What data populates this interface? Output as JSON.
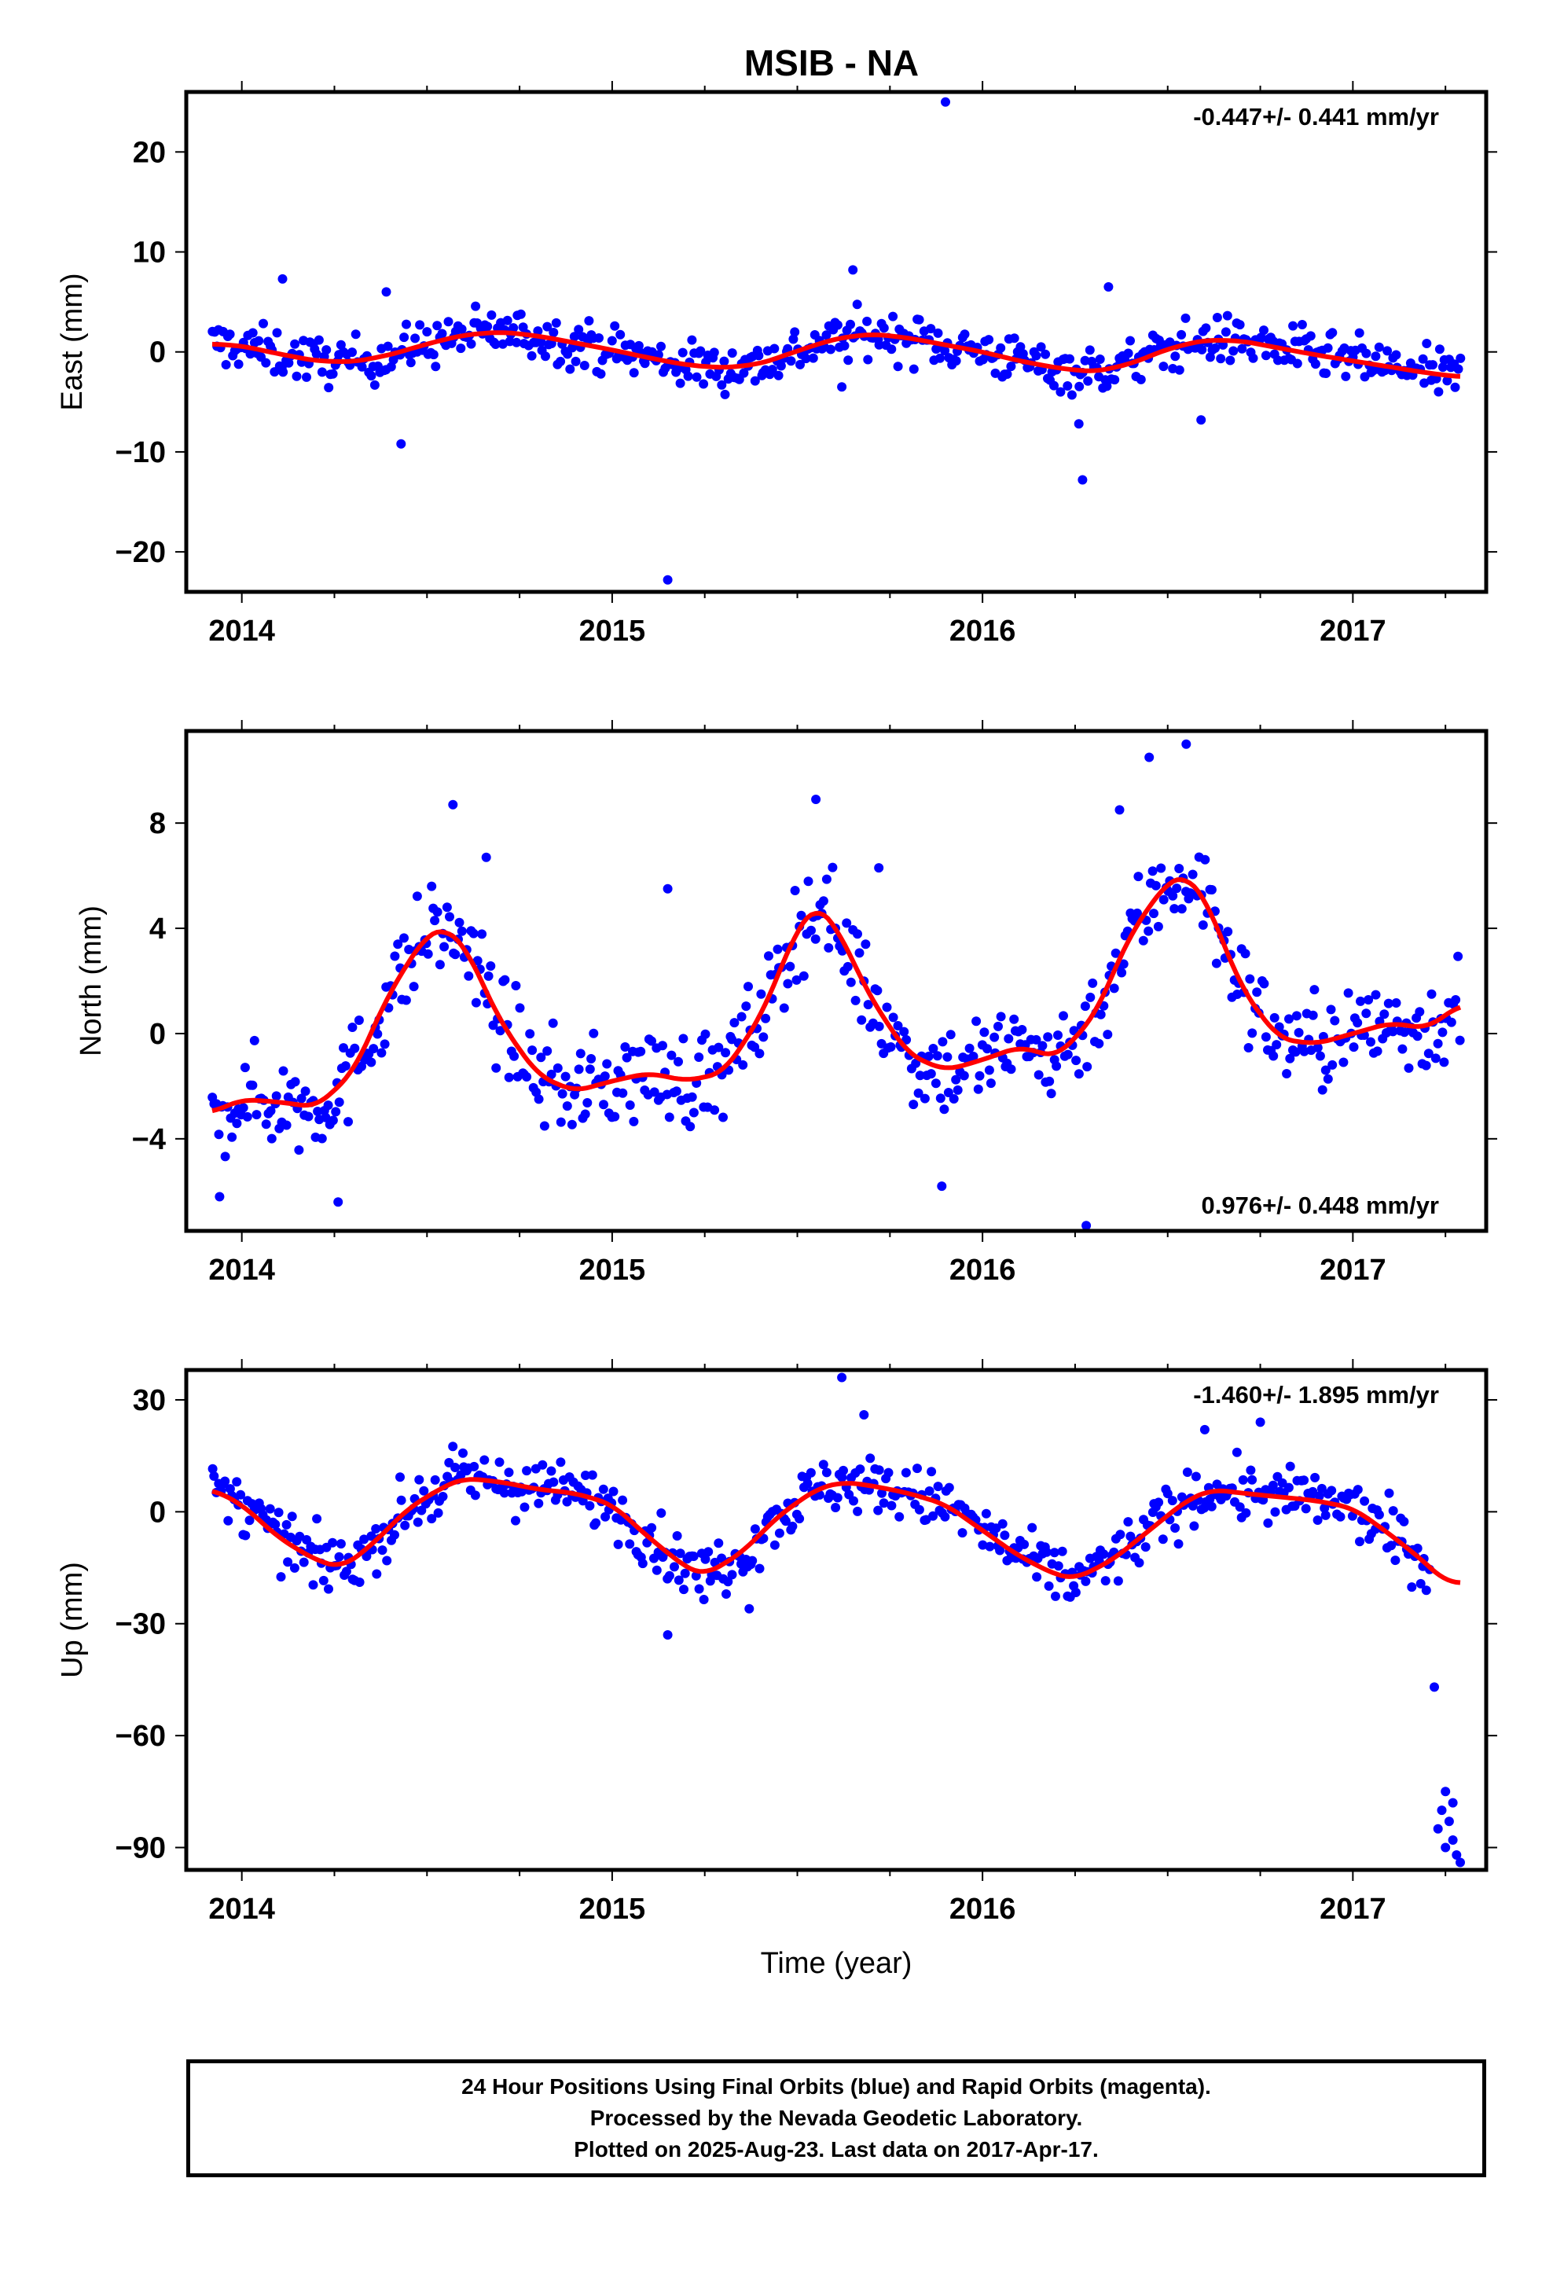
{
  "title": "MSIB - NA",
  "colors": {
    "points": "#0000ff",
    "fit": "#ff0000",
    "frame": "#000000"
  },
  "xlabel": "Time (year)",
  "footer": [
    "24 Hour Positions Using Final Orbits (blue) and Rapid Orbits (magenta).",
    "Processed by the Nevada Geodetic Laboratory.",
    "Plotted on 2025-Aug-23. Last data on 2017-Apr-17."
  ],
  "chart_data": [
    {
      "type": "scatter",
      "ylabel": "East (mm)",
      "rate": "-0.447+/- 0.441 mm/yr",
      "rate_position": "top-right",
      "xlim": [
        2013.85,
        2017.36
      ],
      "ylim": [
        -24,
        26
      ],
      "xticks": [
        2014,
        2015,
        2016,
        2017
      ],
      "yticks": [
        20,
        10,
        0,
        -10,
        -20
      ],
      "ytick_labels": [
        "20",
        "10",
        "0",
        "−10",
        "−20"
      ],
      "fit": {
        "x": [
          2013.92,
          2014.0,
          2014.1,
          2014.2,
          2014.3,
          2014.4,
          2014.5,
          2014.6,
          2014.7,
          2014.8,
          2014.9,
          2015.0,
          2015.1,
          2015.2,
          2015.3,
          2015.4,
          2015.5,
          2015.6,
          2015.7,
          2015.8,
          2015.9,
          2016.0,
          2016.1,
          2016.2,
          2016.3,
          2016.4,
          2016.5,
          2016.6,
          2016.7,
          2016.8,
          2016.9,
          2017.0,
          2017.1,
          2017.2,
          2017.29
        ],
        "y": [
          0.8,
          0.6,
          -0.2,
          -0.9,
          -1.0,
          -0.3,
          0.8,
          1.7,
          2.0,
          1.6,
          0.9,
          0.2,
          -0.6,
          -1.3,
          -1.6,
          -1.2,
          0.1,
          1.3,
          1.8,
          1.4,
          0.7,
          0.0,
          -0.9,
          -1.6,
          -2.0,
          -1.2,
          0.3,
          1.2,
          1.1,
          0.4,
          -0.3,
          -0.9,
          -1.5,
          -2.1,
          -2.5
        ]
      },
      "outliers": [
        [
          2015.9,
          25.0
        ],
        [
          2015.15,
          -22.8
        ],
        [
          2016.27,
          -12.8
        ],
        [
          2014.43,
          -9.2
        ],
        [
          2016.34,
          6.5
        ],
        [
          2016.59,
          -6.8
        ],
        [
          2014.11,
          7.3
        ],
        [
          2014.39,
          6.0
        ],
        [
          2015.65,
          8.2
        ],
        [
          2016.26,
          -7.2
        ],
        [
          2015.62,
          -3.5
        ]
      ],
      "scatter": {
        "spread": 1.7,
        "n": 560
      }
    },
    {
      "type": "scatter",
      "ylabel": "North (mm)",
      "rate": "0.976+/- 0.448 mm/yr",
      "rate_position": "bottom-right",
      "xlim": [
        2013.85,
        2017.36
      ],
      "ylim": [
        -7.5,
        11.5
      ],
      "xticks": [
        2014,
        2015,
        2016,
        2017
      ],
      "yticks": [
        8,
        4,
        0,
        -4
      ],
      "ytick_labels": [
        "8",
        "4",
        "0",
        "−4"
      ],
      "fit": {
        "x": [
          2013.92,
          2014.0,
          2014.1,
          2014.2,
          2014.3,
          2014.4,
          2014.5,
          2014.55,
          2014.6,
          2014.7,
          2014.8,
          2014.9,
          2015.0,
          2015.1,
          2015.2,
          2015.3,
          2015.4,
          2015.5,
          2015.55,
          2015.6,
          2015.7,
          2015.8,
          2015.9,
          2016.0,
          2016.1,
          2016.2,
          2016.3,
          2016.4,
          2016.5,
          2016.55,
          2016.6,
          2016.7,
          2016.8,
          2016.9,
          2017.0,
          2017.1,
          2017.2,
          2017.29
        ],
        "y": [
          -3.0,
          -2.5,
          -2.6,
          -2.8,
          -1.5,
          1.6,
          3.8,
          4.0,
          3.4,
          0.4,
          -1.6,
          -2.2,
          -1.8,
          -1.5,
          -1.8,
          -1.5,
          0.6,
          4.0,
          4.9,
          4.2,
          1.3,
          -0.8,
          -1.4,
          -1.0,
          -0.5,
          -0.9,
          0.6,
          3.8,
          5.8,
          6.0,
          5.2,
          1.7,
          -0.2,
          -0.4,
          0.0,
          0.4,
          0.2,
          1.1
        ]
      },
      "outliers": [
        [
          2016.55,
          11.0
        ],
        [
          2016.45,
          10.5
        ],
        [
          2016.37,
          8.5
        ],
        [
          2014.57,
          8.7
        ],
        [
          2015.55,
          8.9
        ],
        [
          2016.28,
          -7.3
        ],
        [
          2014.26,
          -6.4
        ],
        [
          2015.89,
          -5.8
        ],
        [
          2015.15,
          5.5
        ],
        [
          2014.66,
          6.7
        ],
        [
          2013.94,
          -6.2
        ],
        [
          2015.72,
          6.3
        ]
      ],
      "scatter": {
        "spread": 1.3,
        "n": 560
      }
    },
    {
      "type": "scatter",
      "ylabel": "Up (mm)",
      "rate": "-1.460+/- 1.895 mm/yr",
      "rate_position": "top-right",
      "xlim": [
        2013.85,
        2017.36
      ],
      "ylim": [
        -96,
        38
      ],
      "xticks": [
        2014,
        2015,
        2016,
        2017
      ],
      "yticks": [
        30,
        0,
        -30,
        -60,
        -90
      ],
      "ytick_labels": [
        "30",
        "0",
        "−30",
        "−60",
        "−90"
      ],
      "fit": {
        "x": [
          2013.92,
          2014.0,
          2014.1,
          2014.2,
          2014.27,
          2014.35,
          2014.45,
          2014.55,
          2014.6,
          2014.7,
          2014.8,
          2014.9,
          2015.0,
          2015.1,
          2015.2,
          2015.25,
          2015.35,
          2015.45,
          2015.55,
          2015.62,
          2015.7,
          2015.8,
          2015.9,
          2016.0,
          2016.1,
          2016.2,
          2016.25,
          2016.35,
          2016.45,
          2016.55,
          2016.62,
          2016.7,
          2016.8,
          2016.9,
          2017.0,
          2017.1,
          2017.2,
          2017.25,
          2017.29
        ],
        "y": [
          6,
          2,
          -7,
          -13,
          -15,
          -9,
          1,
          7,
          9,
          8,
          6,
          5,
          2,
          -7,
          -15,
          -17,
          -11,
          -1,
          6,
          8,
          7,
          5,
          2,
          -5,
          -12,
          -17,
          -18,
          -13,
          -5,
          3,
          6,
          5,
          4,
          3,
          1,
          -6,
          -14,
          -19,
          -19
        ]
      },
      "outliers": [
        [
          2015.62,
          36
        ],
        [
          2015.15,
          -33
        ],
        [
          2015.37,
          -26
        ],
        [
          2017.22,
          -47
        ],
        [
          2017.25,
          -75
        ],
        [
          2017.24,
          -80
        ],
        [
          2017.26,
          -83
        ],
        [
          2017.27,
          -88
        ],
        [
          2017.28,
          -92
        ],
        [
          2017.29,
          -94
        ],
        [
          2017.23,
          -85
        ],
        [
          2017.27,
          -78
        ],
        [
          2017.25,
          -90
        ],
        [
          2016.6,
          22
        ],
        [
          2016.75,
          24
        ],
        [
          2015.68,
          26
        ]
      ],
      "scatter": {
        "spread": 5.5,
        "n": 560
      }
    }
  ]
}
